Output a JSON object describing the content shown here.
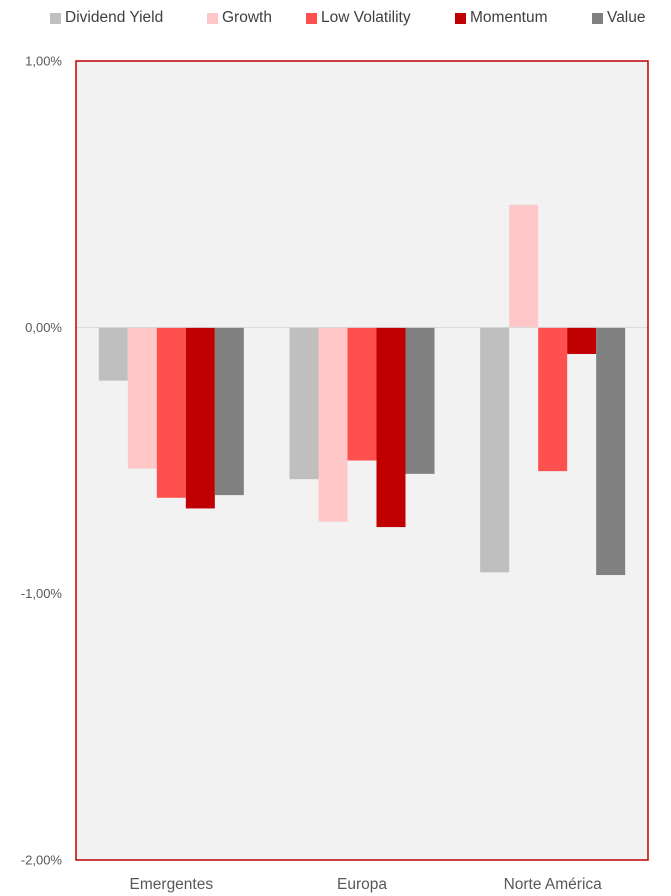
{
  "chart_data": {
    "type": "bar",
    "categories": [
      "Emergentes",
      "Europa",
      "Norte América"
    ],
    "series": [
      {
        "name": "Dividend Yield",
        "color": "#bfbfbf",
        "values": [
          -0.2,
          -0.57,
          -0.92
        ]
      },
      {
        "name": "Growth",
        "color": "#ffc7c7",
        "values": [
          -0.53,
          -0.73,
          0.46
        ]
      },
      {
        "name": "Low Volatility",
        "color": "#ff5050",
        "values": [
          -0.64,
          -0.5,
          -0.54
        ]
      },
      {
        "name": "Momentum",
        "color": "#c00000",
        "values": [
          -0.68,
          -0.75,
          -0.1
        ]
      },
      {
        "name": "Value",
        "color": "#808080",
        "values": [
          -0.63,
          -0.55,
          -0.93
        ]
      }
    ],
    "y_ticks": [
      {
        "value": 1.0,
        "label": "1,00%"
      },
      {
        "value": 0.0,
        "label": "0,00%"
      },
      {
        "value": -1.0,
        "label": "-1,00%"
      },
      {
        "value": -2.0,
        "label": "-2,00%"
      }
    ],
    "ylim": [
      -2.0,
      1.0
    ],
    "legend_position": "top",
    "plot_background": "#f2f2f2",
    "plot_border_color": "#c00000",
    "title": "",
    "xlabel": "",
    "ylabel": ""
  }
}
